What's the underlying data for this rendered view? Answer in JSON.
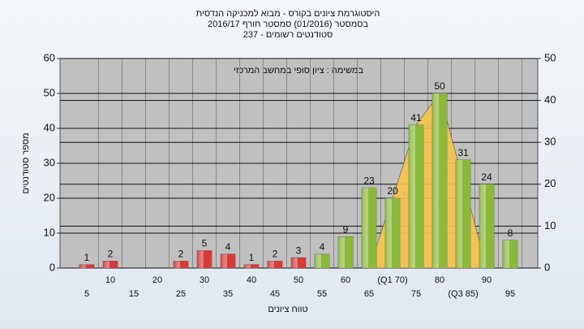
{
  "chart_data": {
    "type": "bar",
    "title": "היסטוגרמת ציונים בקורס - מבוא למכניקה הנדסית",
    "subtitle": [
      "בסמסטר (01/2016) סמסטר חורף 2016/17",
      "סטודנטים רשומים - 237"
    ],
    "annotation": "במשימה : ציון סופי במחשב המרכזי",
    "x_label": "טווח ציונים",
    "y_label": "מספר סטודנטים",
    "categories": [
      "5",
      "10",
      "15",
      "20",
      "25",
      "30",
      "35",
      "40",
      "45",
      "50",
      "55",
      "60",
      "65",
      "(Q1 70)",
      "75",
      "80",
      "(Q3 85)",
      "90",
      "95"
    ],
    "values": [
      1,
      2,
      null,
      null,
      2,
      5,
      4,
      1,
      2,
      3,
      4,
      9,
      23,
      20,
      41,
      50,
      31,
      24,
      8
    ],
    "colors": [
      "#d63a3a",
      "#d63a3a",
      "#d63a3a",
      "#d63a3a",
      "#d63a3a",
      "#d63a3a",
      "#d63a3a",
      "#d63a3a",
      "#d63a3a",
      "#d63a3a",
      "#8cb83c",
      "#8cb83c",
      "#8cb83c",
      "#8cb83c",
      "#8cb83c",
      "#8cb83c",
      "#8cb83c",
      "#8cb83c",
      "#8cb83c"
    ],
    "area_values": [
      null,
      null,
      null,
      null,
      null,
      null,
      null,
      null,
      null,
      null,
      null,
      null,
      0,
      20,
      41,
      50,
      25,
      0,
      null
    ],
    "area_color": "#f7c34a",
    "ylim": [
      0,
      60
    ],
    "yticks": [
      0,
      10,
      20,
      30,
      40,
      50,
      60
    ],
    "y2lim": [
      0,
      50
    ],
    "y2ticks": [
      0,
      10,
      20,
      30,
      40,
      50
    ],
    "grid": true
  }
}
